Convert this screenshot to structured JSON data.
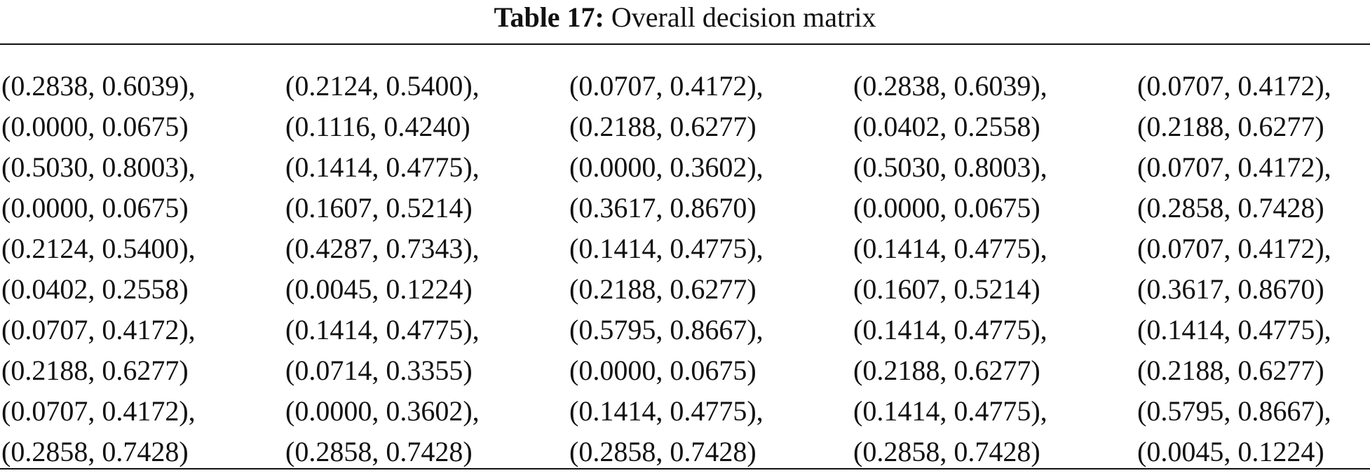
{
  "table": {
    "label": "Table 17:",
    "title": "Overall decision matrix",
    "rows": [
      [
        [
          "(0.2838, 0.6039),",
          "(0.0000, 0.0675)"
        ],
        [
          "(0.2124, 0.5400),",
          "(0.1116, 0.4240)"
        ],
        [
          "(0.0707, 0.4172),",
          "(0.2188, 0.6277)"
        ],
        [
          "(0.2838, 0.6039),",
          "(0.0402, 0.2558)"
        ],
        [
          "(0.0707, 0.4172),",
          "(0.2188, 0.6277)"
        ]
      ],
      [
        [
          "(0.5030, 0.8003),",
          "(0.0000, 0.0675)"
        ],
        [
          "(0.1414, 0.4775),",
          "(0.1607, 0.5214)"
        ],
        [
          "(0.0000, 0.3602),",
          "(0.3617, 0.8670)"
        ],
        [
          "(0.5030, 0.8003),",
          "(0.0000, 0.0675)"
        ],
        [
          "(0.0707, 0.4172),",
          "(0.2858, 0.7428)"
        ]
      ],
      [
        [
          "(0.2124, 0.5400),",
          "(0.0402, 0.2558)"
        ],
        [
          "(0.4287, 0.7343),",
          "(0.0045, 0.1224)"
        ],
        [
          "(0.1414, 0.4775),",
          "(0.2188, 0.6277)"
        ],
        [
          "(0.1414, 0.4775),",
          "(0.1607, 0.5214)"
        ],
        [
          "(0.0707, 0.4172),",
          "(0.3617, 0.8670)"
        ]
      ],
      [
        [
          "(0.0707, 0.4172),",
          "(0.2188, 0.6277)"
        ],
        [
          "(0.1414, 0.4775),",
          "(0.0714, 0.3355)"
        ],
        [
          "(0.5795, 0.8667),",
          "(0.0000, 0.0675)"
        ],
        [
          "(0.1414, 0.4775),",
          "(0.2188, 0.6277)"
        ],
        [
          "(0.1414, 0.4775),",
          "(0.2188, 0.6277)"
        ]
      ],
      [
        [
          "(0.0707, 0.4172),",
          "(0.2858, 0.7428)"
        ],
        [
          "(0.0000, 0.3602),",
          "(0.2858, 0.7428)"
        ],
        [
          "(0.1414, 0.4775),",
          "(0.2858, 0.7428)"
        ],
        [
          "(0.1414, 0.4775),",
          "(0.2858, 0.7428)"
        ],
        [
          "(0.5795, 0.8667),",
          "(0.0045, 0.1224)"
        ]
      ]
    ]
  }
}
